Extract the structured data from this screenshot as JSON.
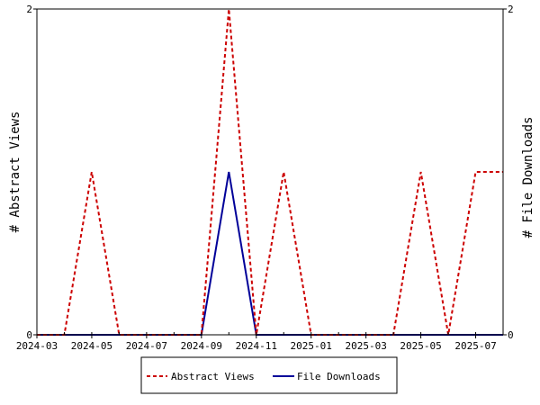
{
  "chart_data": {
    "type": "line",
    "title": "",
    "xlabel": "",
    "ylabel_left": "# Abstract Views",
    "ylabel_right": "# File Downloads",
    "x_ticks": [
      "2024-03",
      "2024-05",
      "2024-07",
      "2024-09",
      "2024-11",
      "2025-01",
      "2025-03",
      "2025-05",
      "2025-07"
    ],
    "x": [
      "2024-03",
      "2024-04",
      "2024-05",
      "2024-06",
      "2024-07",
      "2024-08",
      "2024-09",
      "2024-10",
      "2024-11",
      "2024-12",
      "2025-01",
      "2025-02",
      "2025-03",
      "2025-04",
      "2025-05",
      "2025-06",
      "2025-07",
      "2025-08"
    ],
    "xlim": [
      "2024-03",
      "2025-08"
    ],
    "ylim_left": [
      0,
      2
    ],
    "ylim_right": [
      0,
      2
    ],
    "y_ticks_left": [
      0,
      2
    ],
    "y_ticks_right": [
      0,
      2
    ],
    "grid": false,
    "legend_position": "bottom",
    "series": [
      {
        "name": "Abstract Views",
        "axis": "left",
        "color": "#cc0000",
        "dash": "dashed",
        "values": [
          0,
          0,
          1,
          0,
          0,
          0,
          0,
          2,
          0,
          1,
          0,
          0,
          0,
          0,
          1,
          0,
          1,
          1
        ]
      },
      {
        "name": "File Downloads",
        "axis": "right",
        "color": "#000099",
        "dash": "solid",
        "values": [
          0,
          0,
          0,
          0,
          0,
          0,
          0,
          1,
          0,
          0,
          0,
          0,
          0,
          0,
          0,
          0,
          0,
          0
        ]
      }
    ]
  }
}
